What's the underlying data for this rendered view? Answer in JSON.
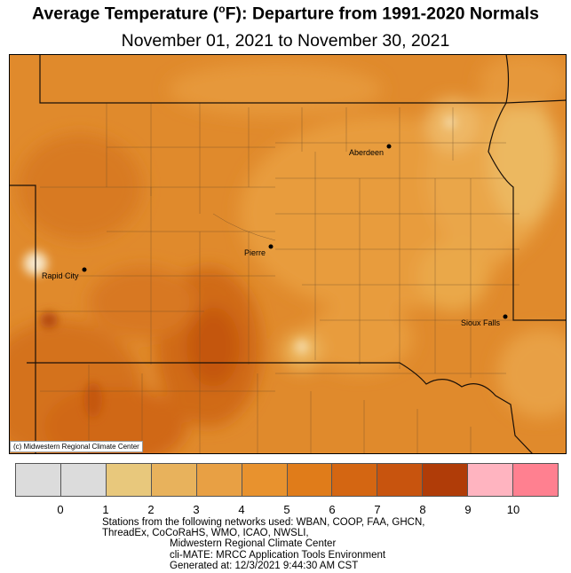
{
  "title": {
    "prefix": "Average Temperature (",
    "degree": "o",
    "suffix": "F): Departure from 1991-2020 Normals"
  },
  "subtitle": "November 01, 2021 to November 30, 2021",
  "map": {
    "cities": [
      {
        "name": "Aberdeen"
      },
      {
        "name": "Pierre"
      },
      {
        "name": "Rapid City"
      },
      {
        "name": "Sioux Falls"
      }
    ],
    "credit": "(c) Midwestern Regional Climate Center"
  },
  "legend": {
    "colors": [
      "#dcdcdc",
      "#dcdcdc",
      "#e8c87c",
      "#e8b25c",
      "#e8a044",
      "#e8922e",
      "#e07c1a",
      "#d46612",
      "#c8540e",
      "#b03c08",
      "#ffb4c0",
      "#ff8090"
    ],
    "ticks": [
      "0",
      "1",
      "2",
      "3",
      "4",
      "5",
      "6",
      "7",
      "8",
      "9",
      "10"
    ]
  },
  "footer": {
    "line1": "Stations from the following networks used:  WBAN, COOP, FAA, GHCN,",
    "line2": "ThreadEx, CoCoRaHS, WMO, ICAO, NWSLI,",
    "line3": "Midwestern Regional Climate Center",
    "line4": "cli-MATE: MRCC Application Tools Environment",
    "line5": "Generated at: 12/3/2021 9:44:30 AM CST"
  }
}
